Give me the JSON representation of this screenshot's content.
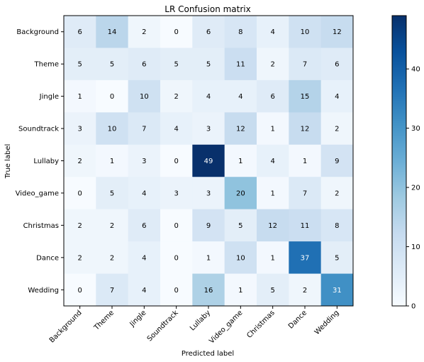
{
  "chart_data": {
    "type": "heatmap",
    "title": "LR Confusion matrix",
    "xlabel": "Predicted label",
    "ylabel": "True label",
    "x_categories": [
      "Background",
      "Theme",
      "Jingle",
      "Soundtrack",
      "Lullaby",
      "Video_game",
      "Christmas",
      "Dance",
      "Wedding"
    ],
    "y_categories": [
      "Background",
      "Theme",
      "Jingle",
      "Soundtrack",
      "Lullaby",
      "Video_game",
      "Christmas",
      "Dance",
      "Wedding"
    ],
    "values": [
      [
        6,
        14,
        2,
        0,
        6,
        8,
        4,
        10,
        12
      ],
      [
        5,
        5,
        6,
        5,
        5,
        11,
        2,
        7,
        6
      ],
      [
        1,
        0,
        10,
        2,
        4,
        4,
        6,
        15,
        4
      ],
      [
        3,
        10,
        7,
        4,
        3,
        12,
        1,
        12,
        2
      ],
      [
        2,
        1,
        3,
        0,
        49,
        1,
        4,
        1,
        9
      ],
      [
        0,
        5,
        4,
        3,
        3,
        20,
        1,
        7,
        2
      ],
      [
        2,
        2,
        6,
        0,
        9,
        5,
        12,
        11,
        8
      ],
      [
        2,
        2,
        4,
        0,
        1,
        10,
        1,
        37,
        5
      ],
      [
        0,
        7,
        4,
        0,
        16,
        1,
        5,
        2,
        31
      ]
    ],
    "colormap": "Blues",
    "vmin": 0,
    "vmax": 49,
    "colorbar_ticks": [
      0,
      10,
      20,
      30,
      40
    ],
    "grid": false
  }
}
